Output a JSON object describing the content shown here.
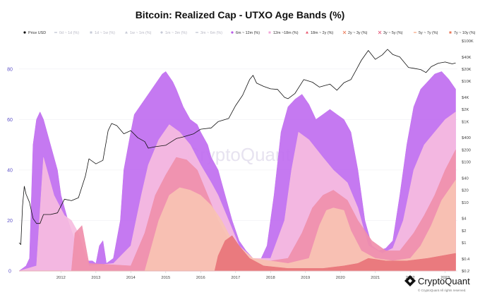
{
  "chart_data": {
    "type": "area",
    "title": "Bitcoin: Realized Cap - UTXO Age Bands (%)",
    "left_axis": {
      "ticks": [
        0,
        20,
        40,
        60,
        80
      ],
      "range": [
        0,
        90
      ]
    },
    "right_axis": {
      "scale": "log",
      "ticks": [
        "$100K",
        "$40K",
        "$20K",
        "$10K",
        "$4K",
        "$2K",
        "$1K",
        "$400",
        "$200",
        "$100",
        "$40",
        "$20",
        "$10",
        "$4",
        "$2",
        "$1",
        "$0.4",
        "$0.2"
      ],
      "range": [
        0.2,
        100000
      ]
    },
    "x_axis": {
      "ticks": [
        "2012",
        "2013",
        "2014",
        "2015",
        "2016",
        "2017",
        "2018",
        "2019",
        "2020",
        "2021",
        "2022",
        "2023"
      ],
      "range": [
        2011.3,
        2023.85
      ]
    },
    "legend": [
      {
        "name": "Price USD",
        "color": "#111111",
        "marker": "dot",
        "faded": false
      },
      {
        "name": "0d ~ 1d (%)",
        "color": "#c6c9d6",
        "marker": "dash",
        "faded": true
      },
      {
        "name": "1d ~ 1w (%)",
        "color": "#c6c9d6",
        "marker": "square",
        "faded": true
      },
      {
        "name": "1w ~ 1m (%)",
        "color": "#c6c9d6",
        "marker": "triangle",
        "faded": true
      },
      {
        "name": "1m ~ 3m (%)",
        "color": "#c6c9d6",
        "marker": "diamond",
        "faded": true
      },
      {
        "name": "3m ~ 6m (%)",
        "color": "#c6c9d6",
        "marker": "dash",
        "faded": true
      },
      {
        "name": "6m ~ 12m (%)",
        "color": "#b95be8",
        "marker": "dot",
        "faded": false
      },
      {
        "name": "12m ~18m (%)",
        "color": "#f3a6d8",
        "marker": "square",
        "faded": false
      },
      {
        "name": "18m ~ 2y (%)",
        "color": "#e9566e",
        "marker": "triangle",
        "faded": false
      },
      {
        "name": "2y ~ 3y (%)",
        "color": "#ef8a6b",
        "marker": "cross",
        "faded": false
      },
      {
        "name": "3y ~ 5y (%)",
        "color": "#e86c8a",
        "marker": "cross",
        "faded": false
      },
      {
        "name": "5y ~ 7y (%)",
        "color": "#f7b08f",
        "marker": "dash",
        "faded": false
      },
      {
        "name": "7y ~ 10y (%)",
        "color": "#e8785a",
        "marker": "square",
        "faded": false
      },
      {
        "name": "10y ~ (%)",
        "color": "#f6c69a",
        "marker": "dot",
        "faded": false
      }
    ],
    "series": [
      {
        "name": "6m ~ 12m (%)",
        "color": "#c06ef0",
        "x": [
          2011.3,
          2011.5,
          2011.6,
          2011.7,
          2011.8,
          2011.9,
          2012.0,
          2012.2,
          2012.4,
          2012.5,
          2012.7,
          2012.9,
          2013.0,
          2013.2,
          2013.4,
          2013.5,
          2013.6,
          2013.7,
          2013.8,
          2014.0,
          2014.2,
          2014.3,
          2014.5,
          2014.6,
          2014.8,
          2015.0,
          2015.2,
          2015.4,
          2015.5,
          2015.7,
          2015.8,
          2016.0,
          2016.2,
          2016.4,
          2016.5,
          2016.7,
          2016.8,
          2017.0,
          2017.2,
          2017.4,
          2017.6,
          2017.8,
          2018.0,
          2018.2,
          2018.4,
          2018.6,
          2018.8,
          2019.0,
          2019.2,
          2019.4,
          2019.6,
          2019.8,
          2020.0,
          2020.2,
          2020.4,
          2020.6,
          2020.8,
          2021.0,
          2021.2,
          2021.4,
          2021.6,
          2021.8,
          2022.0,
          2022.2,
          2022.4,
          2022.6,
          2022.8,
          2023.0,
          2023.2,
          2023.4,
          2023.6,
          2023.8
        ],
        "y": [
          0,
          2,
          5,
          50,
          60,
          63,
          60,
          50,
          40,
          30,
          20,
          12,
          5,
          4,
          4,
          3,
          10,
          12,
          3,
          5,
          20,
          40,
          55,
          62,
          66,
          70,
          74,
          78,
          79,
          75,
          72,
          65,
          60,
          58,
          55,
          50,
          45,
          40,
          30,
          20,
          12,
          8,
          5,
          4,
          10,
          30,
          55,
          65,
          68,
          70,
          66,
          60,
          62,
          64,
          62,
          60,
          55,
          40,
          20,
          10,
          8,
          9,
          12,
          30,
          50,
          65,
          72,
          75,
          78,
          79,
          76,
          72
        ]
      },
      {
        "name": "12m ~18m (%)",
        "color": "#f6bde0",
        "x": [
          2011.3,
          2011.8,
          2012.0,
          2012.3,
          2012.6,
          2012.8,
          2013.0,
          2013.3,
          2014.0,
          2014.5,
          2014.8,
          2015.0,
          2015.3,
          2015.6,
          2015.9,
          2016.2,
          2016.5,
          2016.8,
          2017.0,
          2017.3,
          2017.6,
          2018.0,
          2018.5,
          2018.9,
          2019.1,
          2019.3,
          2019.6,
          2020.0,
          2020.3,
          2020.7,
          2021.0,
          2021.3,
          2021.7,
          2022.0,
          2022.3,
          2022.6,
          2022.9,
          2023.2,
          2023.5,
          2023.8
        ],
        "y": [
          0,
          2,
          45,
          30,
          22,
          20,
          15,
          2,
          3,
          10,
          30,
          42,
          52,
          58,
          55,
          50,
          42,
          35,
          30,
          20,
          10,
          5,
          5,
          20,
          40,
          55,
          52,
          45,
          40,
          35,
          25,
          10,
          7,
          9,
          20,
          40,
          50,
          55,
          60,
          63
        ]
      },
      {
        "name": "18m ~ 2y (%)",
        "color": "#f08fab",
        "x": [
          2011.3,
          2012.8,
          2012.9,
          2013.1,
          2013.3,
          2014.5,
          2014.9,
          2015.2,
          2015.5,
          2015.8,
          2016.1,
          2016.4,
          2016.7,
          2017.0,
          2017.4,
          2017.8,
          2018.5,
          2019.0,
          2019.4,
          2019.7,
          2020.0,
          2020.3,
          2020.7,
          2021.0,
          2021.4,
          2021.8,
          2022.2,
          2022.6,
          2022.9,
          2023.2,
          2023.5,
          2023.8
        ],
        "y": [
          0,
          0,
          15,
          18,
          3,
          2,
          15,
          30,
          38,
          45,
          44,
          40,
          30,
          20,
          10,
          5,
          4,
          5,
          15,
          25,
          30,
          32,
          28,
          20,
          12,
          8,
          8,
          15,
          22,
          30,
          40,
          48
        ]
      },
      {
        "name": "2y ~ 3y (%)",
        "color": "#f9c3b3",
        "x": [
          2011.3,
          2014.9,
          2015.1,
          2015.3,
          2015.6,
          2015.9,
          2016.2,
          2016.5,
          2016.8,
          2017.1,
          2017.4,
          2018.0,
          2019.0,
          2019.6,
          2019.9,
          2020.1,
          2020.3,
          2020.6,
          2020.8,
          2021.1,
          2021.5,
          2022.0,
          2022.5,
          2022.8,
          2023.1,
          2023.4,
          2023.8
        ],
        "y": [
          0,
          0,
          10,
          20,
          30,
          33,
          32,
          30,
          26,
          20,
          12,
          5,
          3,
          5,
          18,
          24,
          25,
          24,
          16,
          8,
          5,
          4,
          5,
          10,
          18,
          28,
          36
        ]
      },
      {
        "name": "5y ~ 7y (%)",
        "color": "#e8747a",
        "x": [
          2011.3,
          2016.9,
          2017.0,
          2017.2,
          2017.4,
          2017.6,
          2017.9,
          2018.3,
          2019.0,
          2020.0,
          2020.6,
          2021.0,
          2021.3,
          2021.8,
          2022.4,
          2023.0,
          2023.8
        ],
        "y": [
          0,
          0,
          6,
          12,
          14,
          10,
          5,
          2,
          1,
          1,
          2,
          3,
          5,
          4,
          4,
          5,
          7
        ]
      }
    ],
    "price_line": {
      "name": "Price USD",
      "color": "#111111",
      "x": [
        2011.3,
        2011.35,
        2011.4,
        2011.45,
        2011.5,
        2011.6,
        2011.7,
        2011.8,
        2011.9,
        2012.0,
        2012.2,
        2012.4,
        2012.6,
        2012.8,
        2013.0,
        2013.2,
        2013.3,
        2013.5,
        2013.7,
        2013.85,
        2013.95,
        2014.1,
        2014.3,
        2014.5,
        2014.7,
        2014.9,
        2015.0,
        2015.2,
        2015.5,
        2015.8,
        2016.0,
        2016.3,
        2016.5,
        2016.8,
        2017.0,
        2017.3,
        2017.5,
        2017.7,
        2017.9,
        2018.0,
        2018.1,
        2018.3,
        2018.5,
        2018.7,
        2018.9,
        2019.0,
        2019.2,
        2019.45,
        2019.7,
        2019.9,
        2020.2,
        2020.4,
        2020.6,
        2020.8,
        2020.95,
        2021.1,
        2021.3,
        2021.5,
        2021.7,
        2021.85,
        2022.0,
        2022.2,
        2022.45,
        2022.6,
        2022.8,
        2022.95,
        2023.1,
        2023.3,
        2023.5,
        2023.7,
        2023.8
      ],
      "y": [
        1,
        0.9,
        8,
        25,
        16,
        10,
        4,
        3,
        3,
        5,
        5,
        5.5,
        12,
        11,
        13,
        45,
        120,
        90,
        110,
        600,
        900,
        800,
        500,
        600,
        400,
        320,
        220,
        240,
        260,
        380,
        420,
        500,
        650,
        700,
        1000,
        1200,
        2500,
        4500,
        11000,
        14000,
        9000,
        7500,
        6500,
        6300,
        4000,
        3700,
        5000,
        11000,
        9500,
        7200,
        8500,
        6000,
        9200,
        11000,
        19000,
        33000,
        58000,
        35000,
        45000,
        62000,
        46000,
        40000,
        22000,
        21000,
        19500,
        16500,
        23000,
        28000,
        30000,
        27000,
        28500
      ]
    }
  },
  "watermark": "CryptoQuant",
  "brand": {
    "name": "CryptoQuant",
    "copyright": "© CryptoQuant All rights reserved."
  }
}
